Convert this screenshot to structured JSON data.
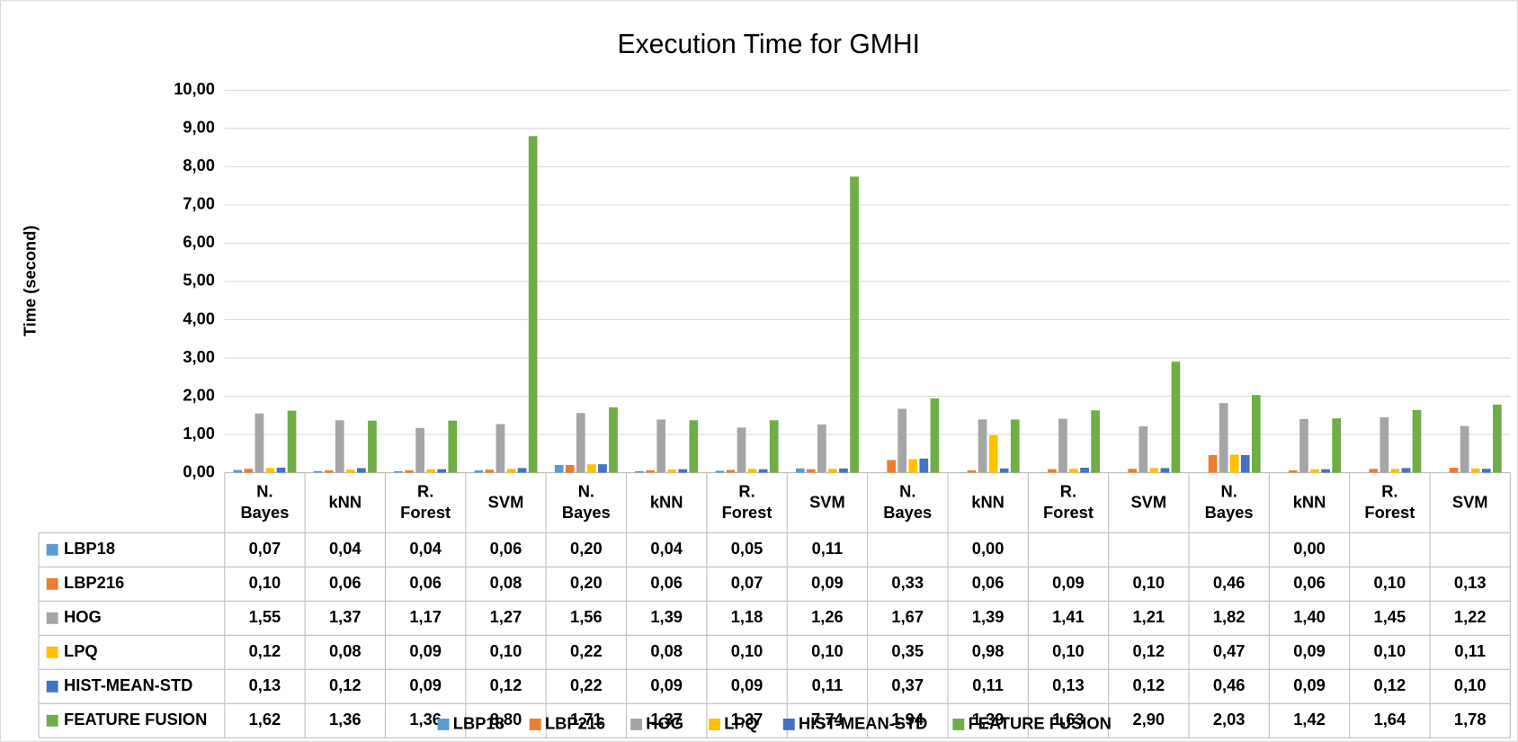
{
  "chart_data": {
    "type": "bar",
    "title": "Execution Time for GMHI",
    "y_label": "Time (second)",
    "categories": [
      "N. Bayes",
      "kNN",
      "R. Forest",
      "SVM",
      "N. Bayes",
      "kNN",
      "R. Forest",
      "SVM",
      "N. Bayes",
      "kNN",
      "R. Forest",
      "SVM",
      "N. Bayes",
      "kNN",
      "R. Forest",
      "SVM"
    ],
    "ylim": [
      0,
      10
    ],
    "yticks": [
      {
        "value": 0,
        "label": "0,00"
      },
      {
        "value": 1,
        "label": "1,00"
      },
      {
        "value": 2,
        "label": "2,00"
      },
      {
        "value": 3,
        "label": "3,00"
      },
      {
        "value": 4,
        "label": "4,00"
      },
      {
        "value": 5,
        "label": "5,00"
      },
      {
        "value": 6,
        "label": "6,00"
      },
      {
        "value": 7,
        "label": "7,00"
      },
      {
        "value": 8,
        "label": "8,00"
      },
      {
        "value": 9,
        "label": "9,00"
      },
      {
        "value": 10,
        "label": "10,00"
      }
    ],
    "grid": true,
    "legend": "bottom",
    "series": [
      {
        "name": "LBP18",
        "color": "#5b9bd5",
        "values": [
          0.07,
          0.04,
          0.04,
          0.06,
          0.2,
          0.04,
          0.05,
          0.11,
          null,
          0.0,
          null,
          null,
          null,
          0.0,
          null,
          null
        ],
        "value_labels": [
          "0,07",
          "0,04",
          "0,04",
          "0,06",
          "0,20",
          "0,04",
          "0,05",
          "0,11",
          null,
          "0,00",
          null,
          null,
          null,
          "0,00",
          null,
          null
        ]
      },
      {
        "name": "LBP216",
        "color": "#ed7d31",
        "values": [
          0.1,
          0.06,
          0.06,
          0.08,
          0.2,
          0.06,
          0.07,
          0.09,
          0.33,
          0.06,
          0.09,
          0.1,
          0.46,
          0.06,
          0.1,
          0.13
        ],
        "value_labels": [
          "0,10",
          "0,06",
          "0,06",
          "0,08",
          "0,20",
          "0,06",
          "0,07",
          "0,09",
          "0,33",
          "0,06",
          "0,09",
          "0,10",
          "0,46",
          "0,06",
          "0,10",
          "0,13"
        ]
      },
      {
        "name": "HOG",
        "color": "#a5a5a5",
        "values": [
          1.55,
          1.37,
          1.17,
          1.27,
          1.56,
          1.39,
          1.18,
          1.26,
          1.67,
          1.39,
          1.41,
          1.21,
          1.82,
          1.4,
          1.45,
          1.22
        ],
        "value_labels": [
          "1,55",
          "1,37",
          "1,17",
          "1,27",
          "1,56",
          "1,39",
          "1,18",
          "1,26",
          "1,67",
          "1,39",
          "1,41",
          "1,21",
          "1,82",
          "1,40",
          "1,45",
          "1,22"
        ]
      },
      {
        "name": "LPQ",
        "color": "#ffc000",
        "values": [
          0.12,
          0.08,
          0.09,
          0.1,
          0.22,
          0.08,
          0.1,
          0.1,
          0.35,
          0.98,
          0.1,
          0.12,
          0.47,
          0.09,
          0.1,
          0.11
        ],
        "value_labels": [
          "0,12",
          "0,08",
          "0,09",
          "0,10",
          "0,22",
          "0,08",
          "0,10",
          "0,10",
          "0,35",
          "0,98",
          "0,10",
          "0,12",
          "0,47",
          "0,09",
          "0,10",
          "0,11"
        ]
      },
      {
        "name": "HIST-MEAN-STD",
        "color": "#4472c4",
        "values": [
          0.13,
          0.12,
          0.09,
          0.12,
          0.22,
          0.09,
          0.09,
          0.11,
          0.37,
          0.11,
          0.13,
          0.12,
          0.46,
          0.09,
          0.12,
          0.1
        ],
        "value_labels": [
          "0,13",
          "0,12",
          "0,09",
          "0,12",
          "0,22",
          "0,09",
          "0,09",
          "0,11",
          "0,37",
          "0,11",
          "0,13",
          "0,12",
          "0,46",
          "0,09",
          "0,12",
          "0,10"
        ]
      },
      {
        "name": "FEATURE FUSION",
        "color": "#70ad47",
        "values": [
          1.62,
          1.36,
          1.36,
          8.8,
          1.71,
          1.37,
          1.37,
          7.74,
          1.94,
          1.39,
          1.63,
          2.9,
          2.03,
          1.42,
          1.64,
          1.78
        ],
        "value_labels": [
          "1,62",
          "1,36",
          "1,36",
          "8,80",
          "1,71",
          "1,37",
          "1,37",
          "7,74",
          "1,94",
          "1,39",
          "1,63",
          "2,90",
          "2,03",
          "1,42",
          "1,64",
          "1,78"
        ]
      }
    ]
  }
}
